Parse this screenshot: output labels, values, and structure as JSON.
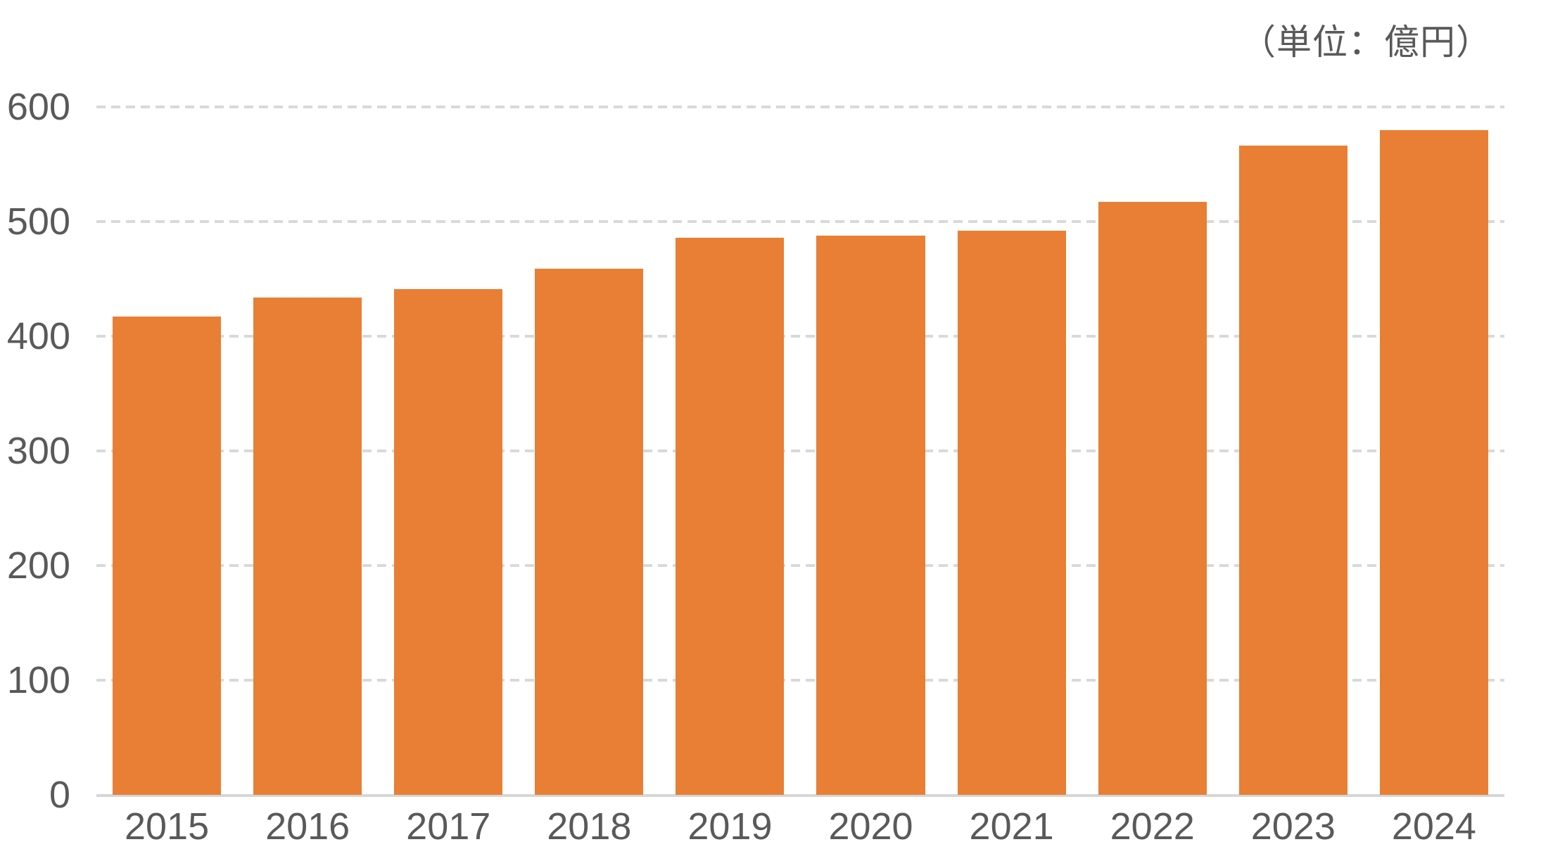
{
  "unit_label": "（単位：億円）",
  "chart_data": {
    "type": "bar",
    "title": "",
    "unit_label": "（単位：億円）",
    "categories": [
      "2015",
      "2016",
      "2017",
      "2018",
      "2019",
      "2020",
      "2021",
      "2022",
      "2023",
      "2024"
    ],
    "values": [
      417,
      434,
      441,
      459,
      486,
      488,
      492,
      517,
      566,
      580
    ],
    "xlabel": "",
    "ylabel": "",
    "ylim": [
      0,
      600
    ],
    "yticks": [
      0,
      100,
      200,
      300,
      400,
      500,
      600
    ],
    "grid": "horizontal-dashed",
    "legend_position": "none",
    "colors": {
      "bar": "#E87F35",
      "axis_text": "#595959",
      "gridline": "#D9D9D9",
      "axis_line": "#D6D6D6",
      "background": "#FFFFFF"
    }
  }
}
